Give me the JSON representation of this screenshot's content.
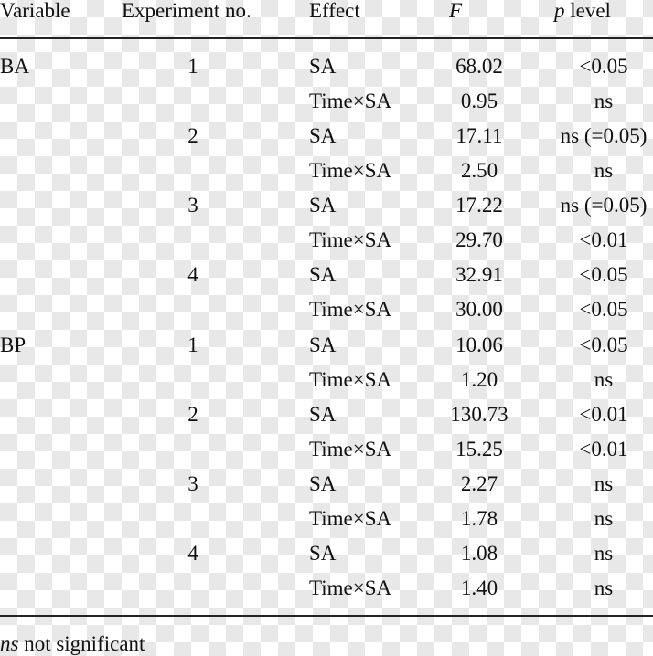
{
  "header": {
    "variable": "Variable",
    "experiment": "Experiment no.",
    "effect": "Effect",
    "f": "F",
    "p": {
      "symbol": "p",
      "text": "level"
    }
  },
  "variables": [
    {
      "name": "BA",
      "experiments": [
        {
          "no": "1",
          "effects": [
            {
              "effect": "SA",
              "f": "68.02",
              "p": "<0.05"
            },
            {
              "effect": "Time×SA",
              "f": "0.95",
              "p": "ns"
            }
          ]
        },
        {
          "no": "2",
          "effects": [
            {
              "effect": "SA",
              "f": "17.11",
              "p": "ns (=0.05)"
            },
            {
              "effect": "Time×SA",
              "f": "2.50",
              "p": "ns"
            }
          ]
        },
        {
          "no": "3",
          "effects": [
            {
              "effect": "SA",
              "f": "17.22",
              "p": "ns (=0.05)"
            },
            {
              "effect": "Time×SA",
              "f": "29.70",
              "p": "<0.01"
            }
          ]
        },
        {
          "no": "4",
          "effects": [
            {
              "effect": "SA",
              "f": "32.91",
              "p": "<0.05"
            },
            {
              "effect": "Time×SA",
              "f": "30.00",
              "p": "<0.05"
            }
          ]
        }
      ]
    },
    {
      "name": "BP",
      "experiments": [
        {
          "no": "1",
          "effects": [
            {
              "effect": "SA",
              "f": "10.06",
              "p": "<0.05"
            },
            {
              "effect": "Time×SA",
              "f": "1.20",
              "p": "ns"
            }
          ]
        },
        {
          "no": "2",
          "effects": [
            {
              "effect": "SA",
              "f": "130.73",
              "p": "<0.01"
            },
            {
              "effect": "Time×SA",
              "f": "15.25",
              "p": "<0.01"
            }
          ]
        },
        {
          "no": "3",
          "effects": [
            {
              "effect": "SA",
              "f": "2.27",
              "p": "ns"
            },
            {
              "effect": "Time×SA",
              "f": "1.78",
              "p": "ns"
            }
          ]
        },
        {
          "no": "4",
          "effects": [
            {
              "effect": "SA",
              "f": "1.08",
              "p": "ns"
            },
            {
              "effect": "Time×SA",
              "f": "1.40",
              "p": "ns"
            }
          ]
        }
      ]
    }
  ],
  "footnote": {
    "abbr": "ns",
    "text": "not significant"
  }
}
